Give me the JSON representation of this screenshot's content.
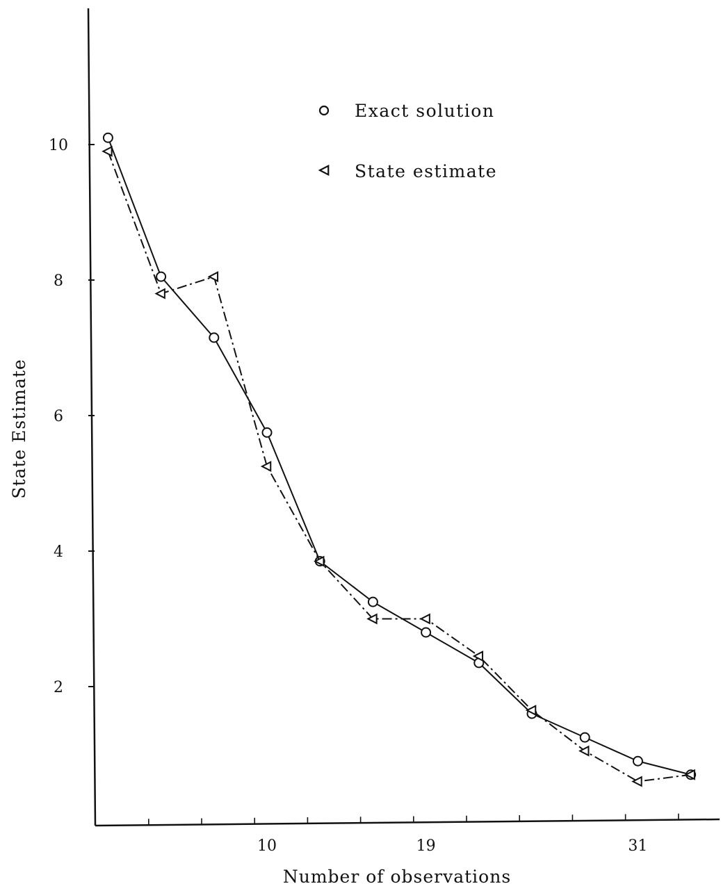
{
  "chart_data": {
    "type": "line",
    "title": "",
    "xlabel": "Number of observations",
    "ylabel": "State Estimate",
    "x_tick_labels": [
      "10",
      "19",
      "31"
    ],
    "y_tick_labels": [
      "2",
      "4",
      "6",
      "8",
      "10"
    ],
    "y_ticks": [
      2,
      4,
      6,
      8,
      10
    ],
    "xlim": [
      0,
      36
    ],
    "ylim": [
      0,
      12
    ],
    "grid": false,
    "legend_position": "top-right",
    "series": [
      {
        "name": "Exact solution",
        "marker": "circle",
        "line_style": "solid",
        "color": "#111111",
        "x": [
          1,
          4,
          7,
          10,
          13,
          16,
          19,
          22,
          25,
          28,
          31,
          34
        ],
        "y": [
          10.1,
          8.05,
          7.15,
          5.75,
          3.85,
          3.25,
          2.8,
          2.35,
          1.6,
          1.25,
          0.9,
          0.7
        ]
      },
      {
        "name": "State estimate",
        "marker": "left-triangle",
        "line_style": "dash-dot",
        "color": "#111111",
        "x": [
          1,
          4,
          7,
          10,
          13,
          16,
          19,
          22,
          25,
          28,
          31,
          34
        ],
        "y": [
          9.9,
          7.8,
          8.05,
          5.25,
          3.85,
          3.0,
          3.0,
          2.45,
          1.65,
          1.05,
          0.6,
          0.7
        ]
      }
    ]
  }
}
